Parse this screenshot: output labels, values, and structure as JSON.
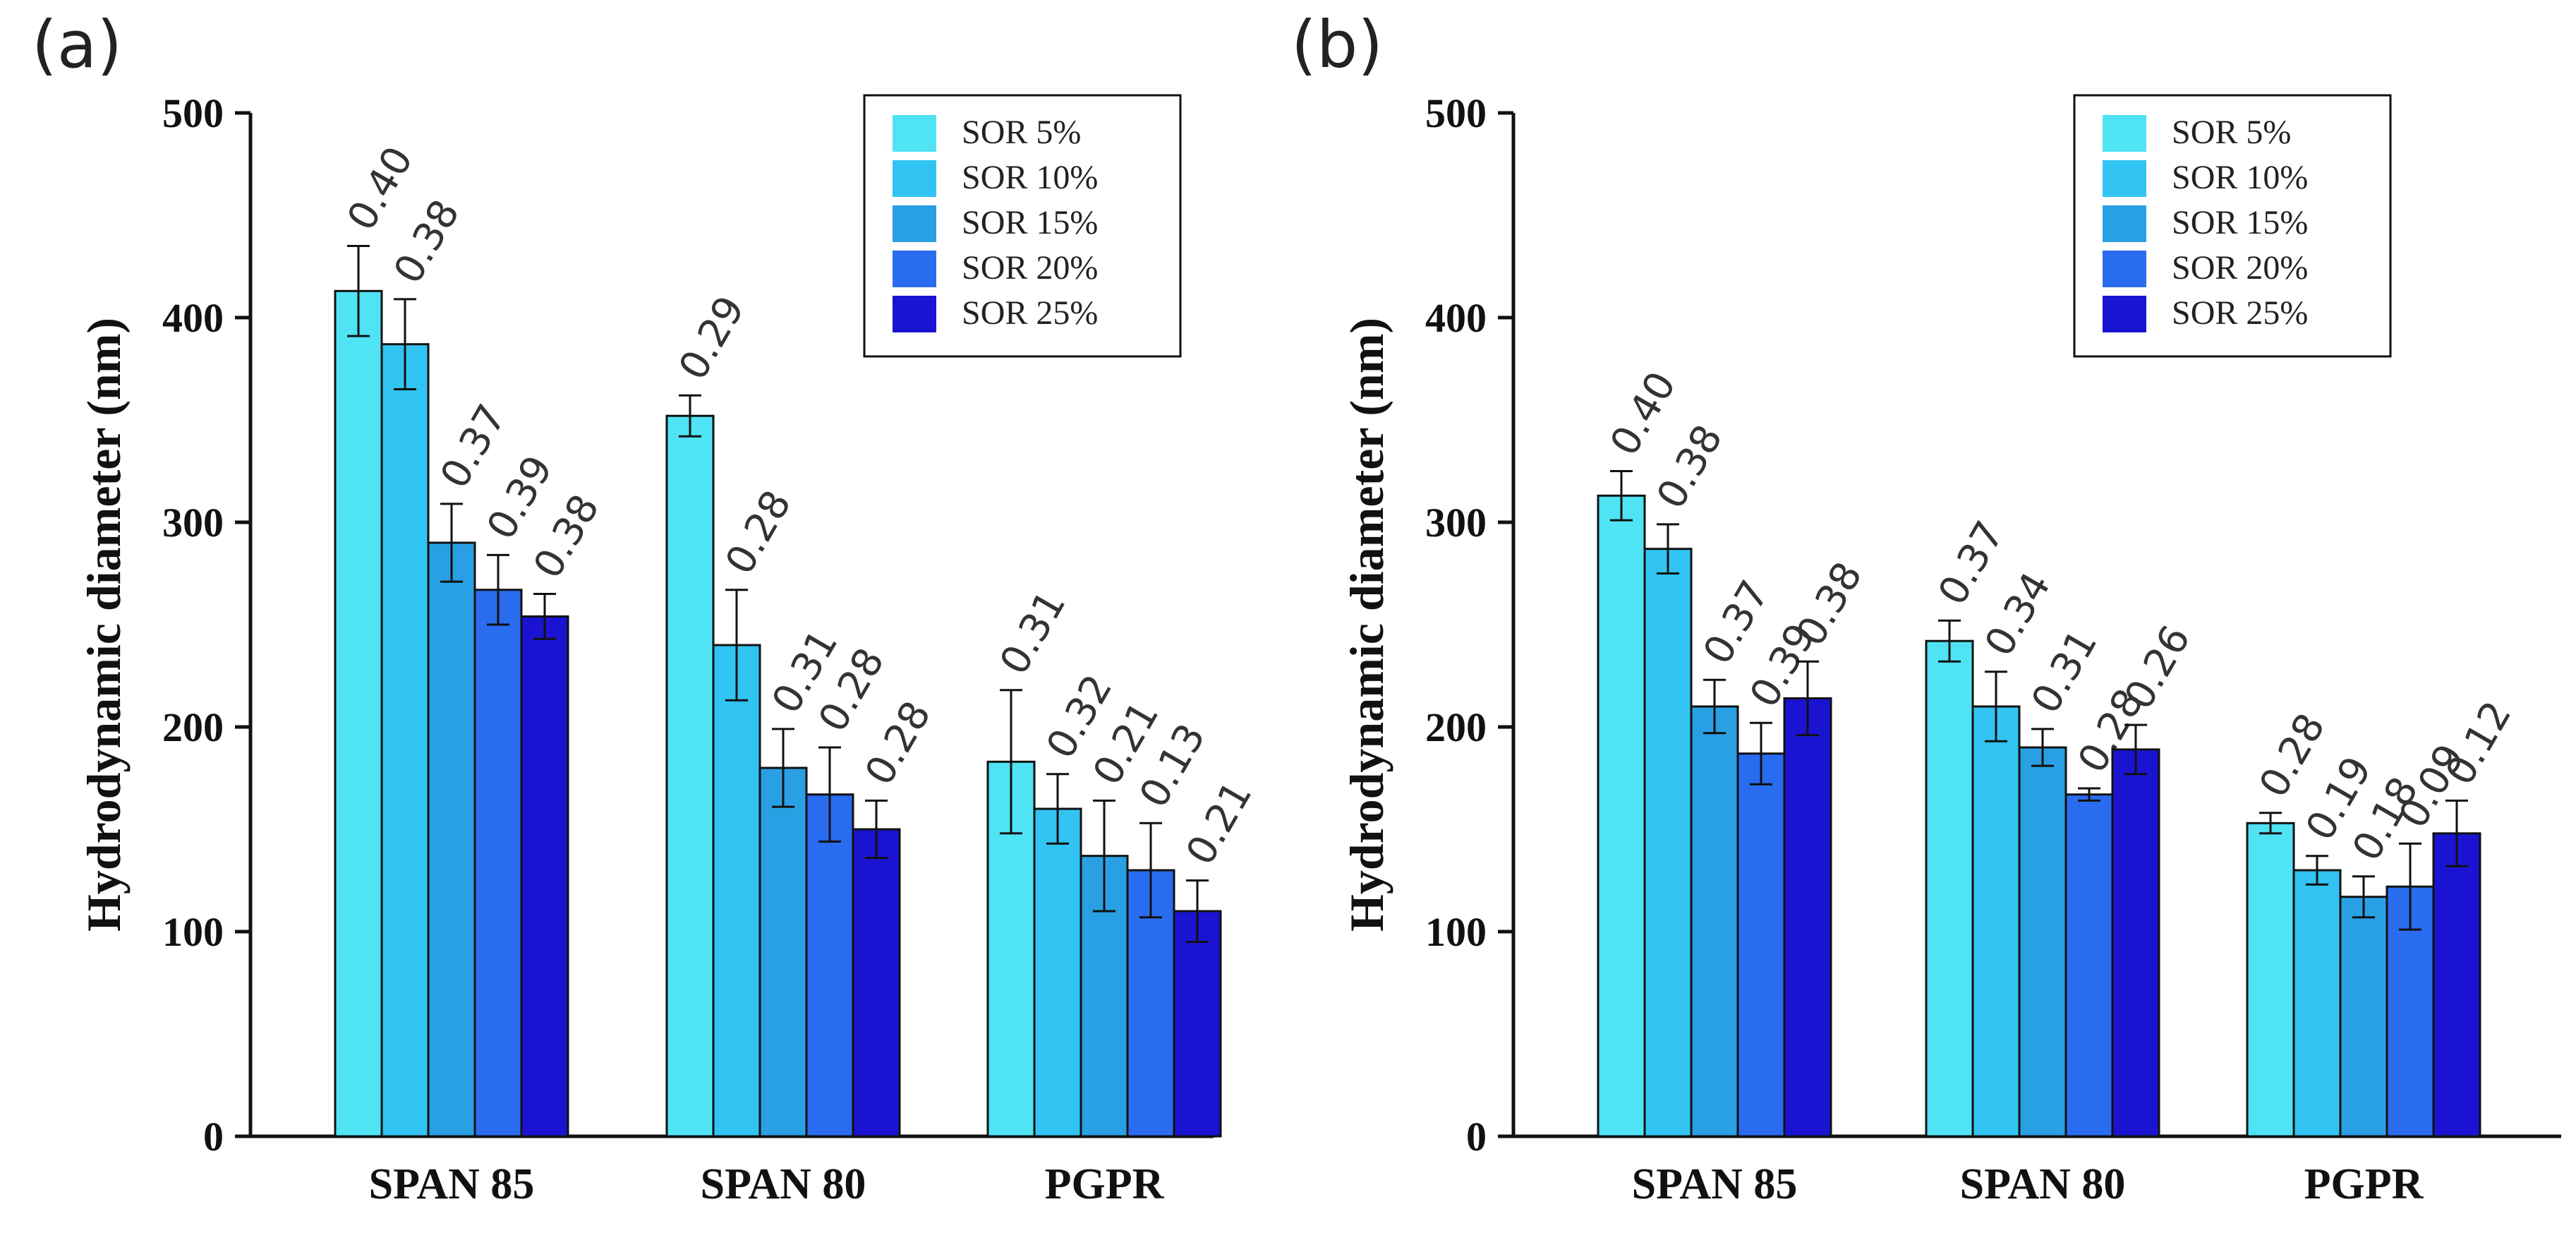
{
  "chart_data": [
    {
      "panel_label": "(a)",
      "type": "bar",
      "ylabel": "Hydrodynamic diameter  (nm)",
      "xlabel": "",
      "ylim": [
        0,
        500
      ],
      "yticks": [
        0,
        100,
        200,
        300,
        400,
        500
      ],
      "categories": [
        "SPAN 85",
        "SPAN 80",
        "PGPR"
      ],
      "legend_position": "top-right",
      "series": [
        {
          "name": "SOR 5%",
          "color": "#4fe3f4",
          "values": [
            413,
            352,
            183
          ],
          "errors": [
            22,
            10,
            35
          ],
          "labels": [
            "0.40",
            "0.29",
            "0.31"
          ]
        },
        {
          "name": "SOR 10%",
          "color": "#31c4f2",
          "values": [
            387,
            240,
            160
          ],
          "errors": [
            22,
            27,
            17
          ],
          "labels": [
            "0.38",
            "0.28",
            "0.32"
          ]
        },
        {
          "name": "SOR 15%",
          "color": "#2aa0e4",
          "values": [
            290,
            180,
            137
          ],
          "errors": [
            19,
            19,
            27
          ],
          "labels": [
            "0.37",
            "0.31",
            "0.21"
          ]
        },
        {
          "name": "SOR 20%",
          "color": "#2a6cf0",
          "values": [
            267,
            167,
            130
          ],
          "errors": [
            17,
            23,
            23
          ],
          "labels": [
            "0.39",
            "0.28",
            "0.13"
          ]
        },
        {
          "name": "SOR 25%",
          "color": "#1a14d2",
          "values": [
            254,
            150,
            110
          ],
          "errors": [
            11,
            14,
            15
          ],
          "labels": [
            "0.38",
            "0.28",
            "0.21"
          ]
        }
      ]
    },
    {
      "panel_label": "(b)",
      "type": "bar",
      "ylabel": "Hydrodynamic diameter  (nm)",
      "xlabel": "",
      "ylim": [
        0,
        500
      ],
      "yticks": [
        0,
        100,
        200,
        300,
        400,
        500
      ],
      "categories": [
        "SPAN 85",
        "SPAN 80",
        "PGPR"
      ],
      "legend_position": "top-right",
      "series": [
        {
          "name": "SOR 5%",
          "color": "#4fe3f4",
          "values": [
            313,
            242,
            153
          ],
          "errors": [
            12,
            10,
            5
          ],
          "labels": [
            "0.40",
            "0.37",
            "0.28"
          ]
        },
        {
          "name": "SOR 10%",
          "color": "#31c4f2",
          "values": [
            287,
            210,
            130
          ],
          "errors": [
            12,
            17,
            7
          ],
          "labels": [
            "0.38",
            "0.34",
            "0.19"
          ]
        },
        {
          "name": "SOR 15%",
          "color": "#2aa0e4",
          "values": [
            210,
            190,
            117
          ],
          "errors": [
            13,
            9,
            10
          ],
          "labels": [
            "0.37",
            "0.31",
            "0.18"
          ]
        },
        {
          "name": "SOR 20%",
          "color": "#2a6cf0",
          "values": [
            187,
            167,
            122
          ],
          "errors": [
            15,
            3,
            21
          ],
          "labels": [
            "0.39",
            "0.28",
            "0.09"
          ]
        },
        {
          "name": "SOR 25%",
          "color": "#1a14d2",
          "values": [
            214,
            189,
            148
          ],
          "errors": [
            18,
            12,
            16
          ],
          "labels": [
            "0.38",
            "0.26",
            "0.12"
          ]
        }
      ]
    }
  ]
}
